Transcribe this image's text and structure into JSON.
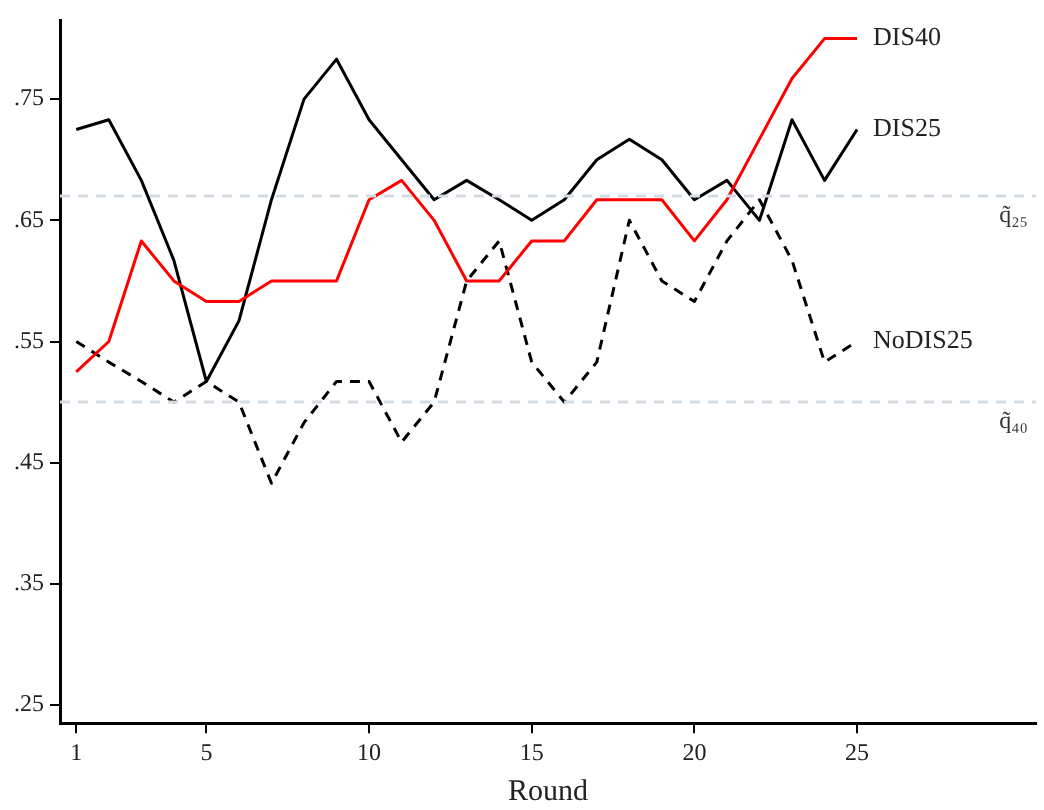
{
  "chart_data": {
    "type": "line",
    "xlabel": "Round",
    "x": [
      1,
      2,
      3,
      4,
      5,
      6,
      7,
      8,
      9,
      10,
      11,
      12,
      13,
      14,
      15,
      16,
      17,
      18,
      19,
      20,
      21,
      22,
      23,
      24,
      25
    ],
    "series": [
      {
        "name": "DIS40",
        "color": "#ff0000",
        "line_style": "solid",
        "values": [
          0.525,
          0.55,
          0.633,
          0.6,
          0.583,
          0.583,
          0.6,
          0.6,
          0.6,
          0.667,
          0.683,
          0.65,
          0.6,
          0.6,
          0.633,
          0.633,
          0.667,
          0.667,
          0.667,
          0.633,
          0.667,
          0.717,
          0.767,
          0.8,
          0.8
        ]
      },
      {
        "name": "DIS25",
        "color": "#000000",
        "line_style": "solid",
        "values": [
          0.725,
          0.733,
          0.683,
          0.617,
          0.517,
          0.567,
          0.667,
          0.75,
          0.783,
          0.733,
          0.7,
          0.667,
          0.683,
          0.667,
          0.65,
          0.667,
          0.7,
          0.717,
          0.7,
          0.667,
          0.683,
          0.65,
          0.733,
          0.683,
          0.725
        ]
      },
      {
        "name": "NoDIS25",
        "color": "#000000",
        "line_style": "dashed",
        "values": [
          0.55,
          0.533,
          0.517,
          0.5,
          0.517,
          0.5,
          0.433,
          0.483,
          0.517,
          0.517,
          0.467,
          0.5,
          0.6,
          0.633,
          0.533,
          0.5,
          0.533,
          0.65,
          0.6,
          0.583,
          0.633,
          0.667,
          0.617,
          0.533,
          0.55
        ]
      }
    ],
    "xlim": [
      0.5,
      30.5
    ],
    "xticks": [
      1,
      5,
      10,
      15,
      20,
      25
    ],
    "ylim": [
      0.235,
      0.815
    ],
    "yticks": [
      {
        "value": 0.25,
        "label": ".25"
      },
      {
        "value": 0.35,
        "label": ".35"
      },
      {
        "value": 0.45,
        "label": ".45"
      },
      {
        "value": 0.55,
        "label": ".55"
      },
      {
        "value": 0.65,
        "label": ".65"
      },
      {
        "value": 0.75,
        "label": ".75"
      }
    ],
    "ref_lines": [
      {
        "axis": "y",
        "value": 0.67,
        "label": "q̃₂₅",
        "color": "#d3dbe3",
        "line_style": "dashed"
      },
      {
        "axis": "y",
        "value": 0.5,
        "label": "q̃₄₀",
        "color": "#d3dbe3",
        "line_style": "dashed"
      }
    ],
    "grid": false,
    "legend": false,
    "marker": "none"
  }
}
